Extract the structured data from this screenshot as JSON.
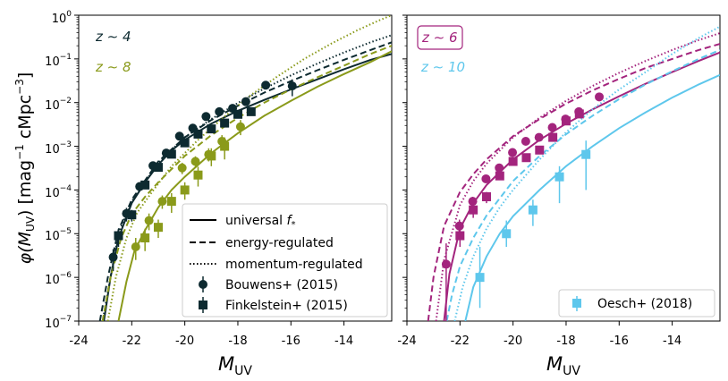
{
  "ylabel": {
    "phi": "φ(M",
    "sub": "UV",
    "rest": ") [mag",
    "exp1": "−1",
    "unit": " cMpc",
    "exp3": "−3",
    "close": "]"
  },
  "xlabel": {
    "m": "M",
    "sub": "UV"
  },
  "colors": {
    "z4": "#0d2a30",
    "z8": "#8a9a1a",
    "z6": "#a3247d",
    "z10": "#5ec7ec"
  },
  "legend_left": {
    "universal": {
      "text": "universal ",
      "f": "f",
      "sub": "*"
    },
    "energy": "energy-regulated",
    "momentum": "momentum-regulated",
    "bouwens": "Bouwens+ (2015)",
    "finkelstein": "Finkelstein+ (2015)"
  },
  "legend_right": {
    "oesch": "Oesch+ (2018)"
  },
  "chart_data": [
    {
      "type": "scatter",
      "panel": "left",
      "xlim": [
        -24,
        -12.2
      ],
      "ylim": [
        1e-07,
        1
      ],
      "yscale": "log",
      "xticks": [
        "-24",
        "-22",
        "-20",
        "-18",
        "-16",
        "-14"
      ],
      "yticks": [
        "10⁻⁷",
        "10⁻⁶",
        "10⁻⁵",
        "10⁻⁴",
        "10⁻³",
        "10⁻²",
        "10⁻¹",
        "10⁰"
      ],
      "redshift_labels": [
        {
          "text": "z ∼ 4",
          "color": "#0d2a30"
        },
        {
          "text": "z ∼ 8",
          "color": "#8a9a1a"
        }
      ],
      "series": [
        {
          "z": "4",
          "model": "universal",
          "color": "#0d2a30",
          "x": [
            -23.05,
            -22.8,
            -22.5,
            -22.0,
            -21.5,
            -21.0,
            -20.5,
            -20.0,
            -19.0,
            -18.0,
            -17.0,
            -16.0,
            -15.0,
            -14.0,
            -13.0,
            -12.2
          ],
          "y": [
            1e-07,
            1e-06,
            8e-06,
            5e-05,
            0.00015,
            0.00038,
            0.0008,
            0.0014,
            0.0033,
            0.0065,
            0.0115,
            0.02,
            0.034,
            0.058,
            0.095,
            0.13
          ]
        },
        {
          "z": "4",
          "model": "energy",
          "color": "#0d2a30",
          "x": [
            -23.2,
            -22.9,
            -22.5,
            -22.0,
            -21.0,
            -20.0,
            -19.0,
            -18.0,
            -17.0,
            -16.0,
            -15.0,
            -14.0,
            -13.0,
            -12.2
          ],
          "y": [
            1e-07,
            1e-06,
            1.2e-05,
            6e-05,
            0.00045,
            0.0016,
            0.004,
            0.0085,
            0.017,
            0.031,
            0.055,
            0.095,
            0.16,
            0.24
          ]
        },
        {
          "z": "4",
          "model": "momentum",
          "color": "#0d2a30",
          "x": [
            -23.1,
            -22.8,
            -22.5,
            -22.0,
            -21.0,
            -20.0,
            -19.0,
            -18.0,
            -17.0,
            -16.0,
            -15.0,
            -14.0,
            -13.0,
            -12.2
          ],
          "y": [
            1e-07,
            1e-06,
            1e-05,
            5.5e-05,
            0.00042,
            0.0016,
            0.0042,
            0.0098,
            0.021,
            0.042,
            0.078,
            0.14,
            0.24,
            0.35
          ]
        },
        {
          "z": "8",
          "model": "universal",
          "color": "#8a9a1a",
          "x": [
            -22.5,
            -22.2,
            -21.9,
            -21.5,
            -21.0,
            -20.5,
            -20.0,
            -19.0,
            -18.0,
            -17.0,
            -16.0,
            -15.0,
            -14.0,
            -13.0,
            -12.2
          ],
          "y": [
            1e-07,
            8e-07,
            4e-06,
            1.2e-05,
            4e-05,
            0.0001,
            0.0002,
            0.0007,
            0.002,
            0.005,
            0.011,
            0.023,
            0.045,
            0.085,
            0.15
          ]
        },
        {
          "z": "8",
          "model": "energy",
          "color": "#8a9a1a",
          "x": [
            -23.1,
            -22.8,
            -22.4,
            -22.0,
            -21.5,
            -21.0,
            -20.0,
            -19.0,
            -18.0,
            -17.0,
            -16.0,
            -15.0,
            -14.0,
            -13.0,
            -12.2
          ],
          "y": [
            1e-07,
            1e-06,
            8e-06,
            2.8e-05,
            7e-05,
            0.00015,
            0.0006,
            0.0018,
            0.0045,
            0.01,
            0.02,
            0.038,
            0.07,
            0.13,
            0.2
          ]
        },
        {
          "z": "8",
          "model": "momentum",
          "color": "#8a9a1a",
          "x": [
            -22.9,
            -22.6,
            -22.2,
            -21.8,
            -21.3,
            -20.5,
            -19.5,
            -18.5,
            -17.5,
            -16.5,
            -15.5,
            -14.5,
            -13.5,
            -12.7,
            -12.2
          ],
          "y": [
            1e-07,
            1e-06,
            8e-06,
            3e-05,
            8e-05,
            0.00035,
            0.0014,
            0.0048,
            0.015,
            0.04,
            0.1,
            0.22,
            0.45,
            0.75,
            1.0
          ]
        }
      ],
      "points": [
        {
          "survey": "Bouwens+ (2015)",
          "z": "4",
          "marker": "circle",
          "color": "#0d2a30",
          "x": [
            -22.7,
            -22.2,
            -21.7,
            -21.2,
            -20.7,
            -20.2,
            -19.7,
            -19.2,
            -18.7,
            -18.2,
            -17.7,
            -16.95,
            -15.95
          ],
          "y": [
            2.9e-06,
            2.9e-05,
            0.00012,
            0.00036,
            0.0007,
            0.0017,
            0.0026,
            0.0048,
            0.0062,
            0.0074,
            0.0105,
            0.025,
            0.024
          ],
          "err_lo": [
            1.5e-06,
            1e-05,
            2e-05,
            5e-05,
            7e-05,
            0.00015,
            0.0002,
            0.0004,
            0.0005,
            0.0008,
            0.0015,
            0.005,
            0.01
          ],
          "err_hi": [
            1.5e-06,
            1e-05,
            2e-05,
            5e-05,
            7e-05,
            0.00015,
            0.0002,
            0.0004,
            0.0005,
            0.0008,
            0.0015,
            0.005,
            0.01
          ]
        },
        {
          "survey": "Finkelstein+ (2015)",
          "z": "4",
          "marker": "square",
          "color": "#0d2a30",
          "x": [
            -22.5,
            -22.0,
            -21.5,
            -21.0,
            -20.5,
            -20.0,
            -19.5,
            -19.0,
            -18.5,
            -18.0,
            -17.5
          ],
          "y": [
            9e-06,
            2.7e-05,
            0.00013,
            0.00033,
            0.00066,
            0.0012,
            0.0019,
            0.0025,
            0.0034,
            0.0054,
            0.0062
          ],
          "err_lo": [
            4e-06,
            8e-06,
            2e-05,
            4e-05,
            7e-05,
            0.00013,
            0.0002,
            0.0003,
            0.0004,
            0.0007,
            0.0012
          ],
          "err_hi": [
            4e-06,
            8e-06,
            2e-05,
            4e-05,
            7e-05,
            0.00013,
            0.0002,
            0.0003,
            0.0004,
            0.0007,
            0.0012
          ]
        },
        {
          "survey": "Bouwens+ (2015)",
          "z": "8",
          "marker": "circle",
          "color": "#8a9a1a",
          "x": [
            -21.85,
            -21.35,
            -20.85,
            -20.1,
            -19.6,
            -19.1,
            -18.6,
            -17.9
          ],
          "y": [
            5e-06,
            2e-05,
            5.5e-05,
            0.00032,
            0.00045,
            0.00065,
            0.0013,
            0.0028
          ],
          "err_lo": [
            2.5e-06,
            8e-06,
            1.8e-05,
            9e-05,
            0.00012,
            0.0002,
            0.0004,
            0.001
          ],
          "err_hi": [
            3e-06,
            9e-06,
            2e-05,
            0.0001,
            0.00014,
            0.00025,
            0.0005,
            0.0012
          ]
        },
        {
          "survey": "Finkelstein+ (2015)",
          "z": "8",
          "marker": "square",
          "color": "#8a9a1a",
          "x": [
            -21.5,
            -21.0,
            -20.5,
            -20.0,
            -19.5,
            -19.0,
            -18.5
          ],
          "y": [
            8e-06,
            1.4e-05,
            5.5e-05,
            0.0001,
            0.00022,
            0.0006,
            0.001
          ],
          "err_lo": [
            4e-06,
            6e-06,
            2.5e-05,
            4e-05,
            0.0001,
            0.00025,
            0.0005
          ],
          "err_hi": [
            5e-06,
            7e-06,
            3e-05,
            5e-05,
            0.00012,
            0.0003,
            0.0006
          ]
        }
      ]
    },
    {
      "type": "scatter",
      "panel": "right",
      "xlim": [
        -24,
        -12.2
      ],
      "ylim": [
        1e-07,
        1
      ],
      "yscale": "log",
      "xticks": [
        "-24",
        "-22",
        "-20",
        "-18",
        "-16",
        "-14"
      ],
      "redshift_labels": [
        {
          "text": "z ∼ 6",
          "color": "#a3247d",
          "boxed": true
        },
        {
          "text": "z ∼ 10",
          "color": "#5ec7ec"
        }
      ],
      "series": [
        {
          "z": "6",
          "model": "universal",
          "color": "#a3247d",
          "x": [
            -22.6,
            -22.4,
            -22.0,
            -21.5,
            -21.0,
            -20.0,
            -19.0,
            -18.0,
            -17.0,
            -16.0,
            -15.0,
            -14.0,
            -13.0,
            -12.2
          ],
          "y": [
            1e-07,
            1.2e-06,
            1.3e-05,
            5e-05,
            0.00013,
            0.0005,
            0.0014,
            0.0033,
            0.007,
            0.014,
            0.027,
            0.05,
            0.09,
            0.14
          ]
        },
        {
          "z": "6",
          "model": "energy",
          "color": "#a3247d",
          "x": [
            -23.2,
            -23.0,
            -22.6,
            -22.0,
            -21.5,
            -21.0,
            -20.0,
            -19.0,
            -18.0,
            -17.0,
            -16.0,
            -15.0,
            -14.0,
            -13.0,
            -12.2
          ],
          "y": [
            1e-07,
            1e-06,
            1.5e-05,
            9e-05,
            0.00023,
            0.0005,
            0.0017,
            0.0042,
            0.0095,
            0.019,
            0.035,
            0.062,
            0.1,
            0.16,
            0.22
          ]
        },
        {
          "z": "6",
          "model": "momentum",
          "color": "#a3247d",
          "x": [
            -22.9,
            -22.6,
            -22.0,
            -21.5,
            -21.0,
            -20.0,
            -19.0,
            -18.0,
            -17.0,
            -16.0,
            -15.0,
            -14.0,
            -13.0,
            -12.2
          ],
          "y": [
            1e-07,
            2.5e-06,
            4.5e-05,
            0.00016,
            0.0004,
            0.0016,
            0.0045,
            0.011,
            0.024,
            0.048,
            0.09,
            0.16,
            0.27,
            0.39
          ]
        },
        {
          "z": "10",
          "model": "universal",
          "color": "#5ec7ec",
          "x": [
            -21.8,
            -21.5,
            -21.0,
            -20.5,
            -20.0,
            -19.0,
            -18.0,
            -17.0,
            -16.0,
            -15.0,
            -14.0,
            -13.0,
            -12.2
          ],
          "y": [
            1e-07,
            6e-07,
            3e-06,
            1e-05,
            2.5e-05,
            0.0001,
            0.00035,
            0.001,
            0.0026,
            0.006,
            0.013,
            0.026,
            0.043
          ]
        },
        {
          "z": "10",
          "model": "energy",
          "color": "#5ec7ec",
          "x": [
            -22.5,
            -22.3,
            -22.0,
            -21.5,
            -21.0,
            -20.0,
            -19.0,
            -18.0,
            -17.0,
            -16.0,
            -15.0,
            -14.0,
            -13.0,
            -12.2
          ],
          "y": [
            1e-07,
            4e-07,
            1.8e-06,
            8e-06,
            2.6e-05,
            0.00016,
            0.0006,
            0.0019,
            0.005,
            0.012,
            0.026,
            0.052,
            0.1,
            0.16
          ]
        },
        {
          "z": "10",
          "model": "momentum",
          "color": "#5ec7ec",
          "x": [
            -22.2,
            -21.9,
            -21.5,
            -21.0,
            -20.5,
            -20.0,
            -19.0,
            -18.0,
            -17.0,
            -16.0,
            -15.0,
            -14.0,
            -13.0,
            -12.2
          ],
          "y": [
            1e-07,
            6e-07,
            3e-06,
            1.3e-05,
            4e-05,
            0.0001,
            0.0005,
            0.0021,
            0.007,
            0.02,
            0.05,
            0.13,
            0.3,
            0.55
          ]
        }
      ],
      "points": [
        {
          "survey": "Bouwens+ (2015)",
          "z": "6",
          "marker": "circle",
          "color": "#a3247d",
          "x": [
            -22.52,
            -22.02,
            -21.52,
            -21.02,
            -20.52,
            -20.02,
            -19.52,
            -19.02,
            -18.52,
            -18.02,
            -17.52,
            -16.75
          ],
          "y": [
            2e-06,
            1.5e-05,
            5.5e-05,
            0.00018,
            0.00032,
            0.00072,
            0.0013,
            0.0016,
            0.0027,
            0.0042,
            0.0062,
            0.0135
          ],
          "err_lo": [
            1.9e-06,
            6e-06,
            1.5e-05,
            3e-05,
            5e-05,
            0.0001,
            0.00015,
            0.0002,
            0.0003,
            0.0004,
            0.0008,
            0.002
          ],
          "err_hi": [
            4e-06,
            6e-06,
            1.5e-05,
            3e-05,
            5e-05,
            0.0001,
            0.00015,
            0.0002,
            0.0003,
            0.0004,
            0.0008,
            0.002
          ]
        },
        {
          "survey": "Finkelstein+ (2015)",
          "z": "6",
          "marker": "square",
          "color": "#a3247d",
          "x": [
            -22.0,
            -21.5,
            -21.0,
            -20.5,
            -20.0,
            -19.5,
            -19.0,
            -18.5,
            -18.0,
            -17.5
          ],
          "y": [
            9e-06,
            3.5e-05,
            7e-05,
            0.00021,
            0.00045,
            0.00055,
            0.00082,
            0.0016,
            0.0038,
            0.0055
          ],
          "err_lo": [
            4e-06,
            1.2e-05,
            2e-05,
            4e-05,
            7e-05,
            8e-05,
            0.00012,
            0.00025,
            0.0006,
            0.001
          ],
          "err_hi": [
            4e-06,
            1.2e-05,
            2e-05,
            4e-05,
            7e-05,
            8e-05,
            0.00012,
            0.00025,
            0.0006,
            0.001
          ]
        },
        {
          "survey": "Oesch+ (2018)",
          "z": "10",
          "marker": "square",
          "color": "#5ec7ec",
          "x": [
            -21.25,
            -20.25,
            -19.25,
            -18.25,
            -17.25
          ],
          "y": [
            1e-06,
            1e-05,
            3.5e-05,
            0.0002,
            0.00065
          ],
          "err_lo": [
            8e-07,
            5e-06,
            2e-05,
            0.00015,
            0.00055
          ],
          "err_hi": [
            4e-06,
            1e-05,
            2.5e-05,
            0.00015,
            0.0007
          ]
        }
      ]
    }
  ]
}
